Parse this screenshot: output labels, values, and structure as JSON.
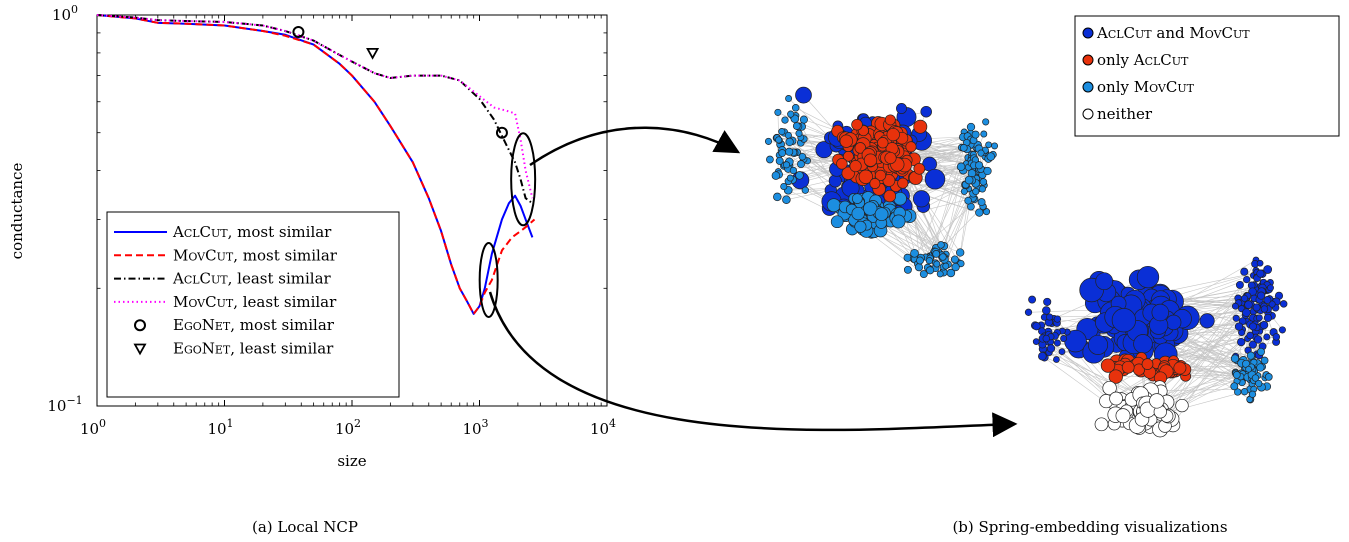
{
  "panels": {
    "a_caption": "(a) Local NCP",
    "b_caption": "(b) Spring-embedding visualizations"
  },
  "chart_data": {
    "type": "line",
    "xlabel": "size",
    "ylabel": "conductance",
    "xscale": "log",
    "yscale": "log",
    "xlim": [
      1,
      10000
    ],
    "ylim": [
      0.1,
      1
    ],
    "x_ticks": [
      {
        "value": 1,
        "base": "10",
        "exp": "0"
      },
      {
        "value": 10,
        "base": "10",
        "exp": "1"
      },
      {
        "value": 100,
        "base": "10",
        "exp": "2"
      },
      {
        "value": 1000,
        "base": "10",
        "exp": "3"
      },
      {
        "value": 10000,
        "base": "10",
        "exp": "4"
      }
    ],
    "y_ticks": [
      {
        "value": 0.1,
        "base": "10",
        "exp": "−1"
      },
      {
        "value": 1,
        "base": "10",
        "exp": "0"
      }
    ],
    "legend_position": "lower-left",
    "series": [
      {
        "name_sc": "AclCut",
        "name_rest": ", most similar",
        "color": "#0000ff",
        "style": "solid",
        "x": [
          1,
          2,
          3,
          5,
          10,
          20,
          30,
          50,
          80,
          100,
          150,
          200,
          300,
          400,
          500,
          600,
          700,
          800,
          900,
          1000,
          1100,
          1250,
          1500,
          1700,
          1900,
          2100,
          2300,
          2600
        ],
        "y": [
          1.0,
          0.98,
          0.955,
          0.95,
          0.94,
          0.91,
          0.89,
          0.84,
          0.75,
          0.7,
          0.6,
          0.52,
          0.42,
          0.34,
          0.28,
          0.23,
          0.2,
          0.185,
          0.172,
          0.18,
          0.2,
          0.245,
          0.3,
          0.33,
          0.345,
          0.325,
          0.3,
          0.27
        ]
      },
      {
        "name_sc": "MovCut",
        "name_rest": ", most similar",
        "color": "#ff0000",
        "style": "dashed",
        "x": [
          1,
          2,
          3,
          5,
          10,
          20,
          30,
          50,
          80,
          100,
          150,
          200,
          300,
          400,
          500,
          600,
          700,
          800,
          900,
          1000,
          1100,
          1250,
          1500,
          1800,
          2100,
          2400,
          2700
        ],
        "y": [
          1.0,
          0.98,
          0.955,
          0.95,
          0.94,
          0.91,
          0.885,
          0.84,
          0.75,
          0.7,
          0.6,
          0.52,
          0.42,
          0.34,
          0.28,
          0.23,
          0.2,
          0.185,
          0.172,
          0.18,
          0.195,
          0.21,
          0.25,
          0.27,
          0.28,
          0.29,
          0.3
        ]
      },
      {
        "name_sc": "AclCut",
        "name_rest": ", least similar",
        "color": "#000000",
        "style": "dashdot",
        "x": [
          1,
          2,
          3,
          5,
          10,
          20,
          30,
          50,
          80,
          100,
          150,
          200,
          300,
          500,
          700,
          1000,
          1300,
          1600,
          1900,
          2100,
          2300,
          2600
        ],
        "y": [
          1.0,
          0.985,
          0.97,
          0.965,
          0.96,
          0.94,
          0.91,
          0.86,
          0.79,
          0.76,
          0.71,
          0.69,
          0.7,
          0.7,
          0.68,
          0.61,
          0.54,
          0.47,
          0.42,
          0.38,
          0.34,
          0.33
        ]
      },
      {
        "name_sc": "MovCut",
        "name_rest": ", least similar",
        "color": "#ff00ff",
        "style": "dotted",
        "x": [
          1,
          2,
          3,
          5,
          10,
          20,
          30,
          50,
          80,
          100,
          150,
          200,
          300,
          500,
          700,
          1000,
          1300,
          1600,
          1900,
          2100,
          2300,
          2600
        ],
        "y": [
          1.0,
          0.985,
          0.97,
          0.965,
          0.96,
          0.94,
          0.91,
          0.86,
          0.79,
          0.76,
          0.71,
          0.69,
          0.7,
          0.7,
          0.68,
          0.62,
          0.58,
          0.57,
          0.56,
          0.48,
          0.4,
          0.34
        ]
      }
    ],
    "markers": [
      {
        "name_sc": "EgoNet",
        "name_rest": ", most similar",
        "shape": "circle",
        "points": [
          {
            "x": 38,
            "y": 0.905
          },
          {
            "x": 1500,
            "y": 0.5
          }
        ]
      },
      {
        "name_sc": "EgoNet",
        "name_rest": ", least similar",
        "shape": "triangle-down",
        "points": [
          {
            "x": 145,
            "y": 0.8
          }
        ]
      }
    ],
    "highlight_ellipses": [
      {
        "x": 2200,
        "y": 0.38
      },
      {
        "x": 1180,
        "y": 0.21
      }
    ]
  },
  "network_legend": {
    "items": [
      {
        "color": "#0a2fd6",
        "label_sc": "AclCut",
        "label_mid": " and ",
        "label_sc2": "MovCut",
        "prefix": ""
      },
      {
        "color": "#e8320c",
        "label_sc": "AclCut",
        "label_mid": "",
        "label_sc2": "",
        "prefix": "only "
      },
      {
        "color": "#1c8ee0",
        "label_sc": "MovCut",
        "label_mid": "",
        "label_sc2": "",
        "prefix": "only "
      },
      {
        "color": "#ffffff",
        "label_sc": "",
        "label_mid": "",
        "label_sc2": "",
        "prefix": "neither"
      }
    ]
  }
}
